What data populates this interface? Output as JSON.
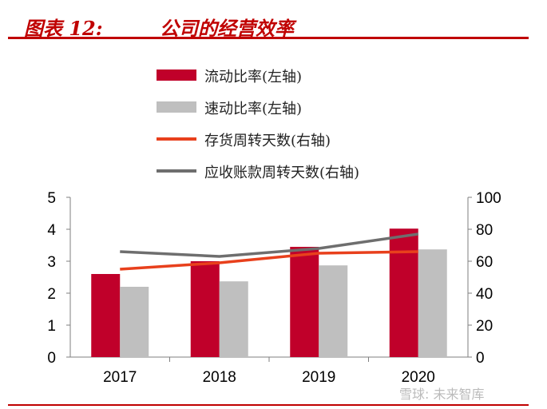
{
  "header": {
    "figure_label": "图表 12:",
    "title": "公司的经营效率"
  },
  "colors": {
    "accent": "#c00000",
    "current_ratio": "#c0002a",
    "quick_ratio": "#bfbfbf",
    "inventory_days": "#e8401c",
    "receivable_days": "#6e6e6e"
  },
  "legend": {
    "items": [
      {
        "label": "流动比率(左轴)",
        "kind": "bar",
        "color": "#c0002a"
      },
      {
        "label": "速动比率(左轴)",
        "kind": "bar",
        "color": "#bfbfbf"
      },
      {
        "label": "存货周转天数(右轴)",
        "kind": "line",
        "color": "#e8401c"
      },
      {
        "label": "应收账款周转天数(右轴)",
        "kind": "line",
        "color": "#6e6e6e"
      }
    ]
  },
  "chart_data": {
    "type": "bar",
    "categories": [
      "2017",
      "2018",
      "2019",
      "2020"
    ],
    "series": [
      {
        "name": "流动比率(左轴)",
        "type": "bar",
        "axis": "left",
        "values": [
          2.6,
          3.0,
          3.45,
          4.02
        ]
      },
      {
        "name": "速动比率(左轴)",
        "type": "bar",
        "axis": "left",
        "values": [
          2.2,
          2.37,
          2.87,
          3.37
        ]
      },
      {
        "name": "存货周转天数(右轴)",
        "type": "line",
        "axis": "right",
        "values": [
          55,
          59,
          65,
          66
        ]
      },
      {
        "name": "应收账款周转天数(右轴)",
        "type": "line",
        "axis": "right",
        "values": [
          66,
          63,
          68,
          77
        ]
      }
    ],
    "y_left": {
      "lim": [
        0,
        5
      ],
      "ticks": [
        0,
        1,
        2,
        3,
        4,
        5
      ]
    },
    "y_right": {
      "lim": [
        0,
        100
      ],
      "ticks": [
        0,
        20,
        40,
        60,
        80,
        100
      ]
    },
    "grid": false,
    "legend_position": "top"
  },
  "watermark": "雪球: 未来智库"
}
